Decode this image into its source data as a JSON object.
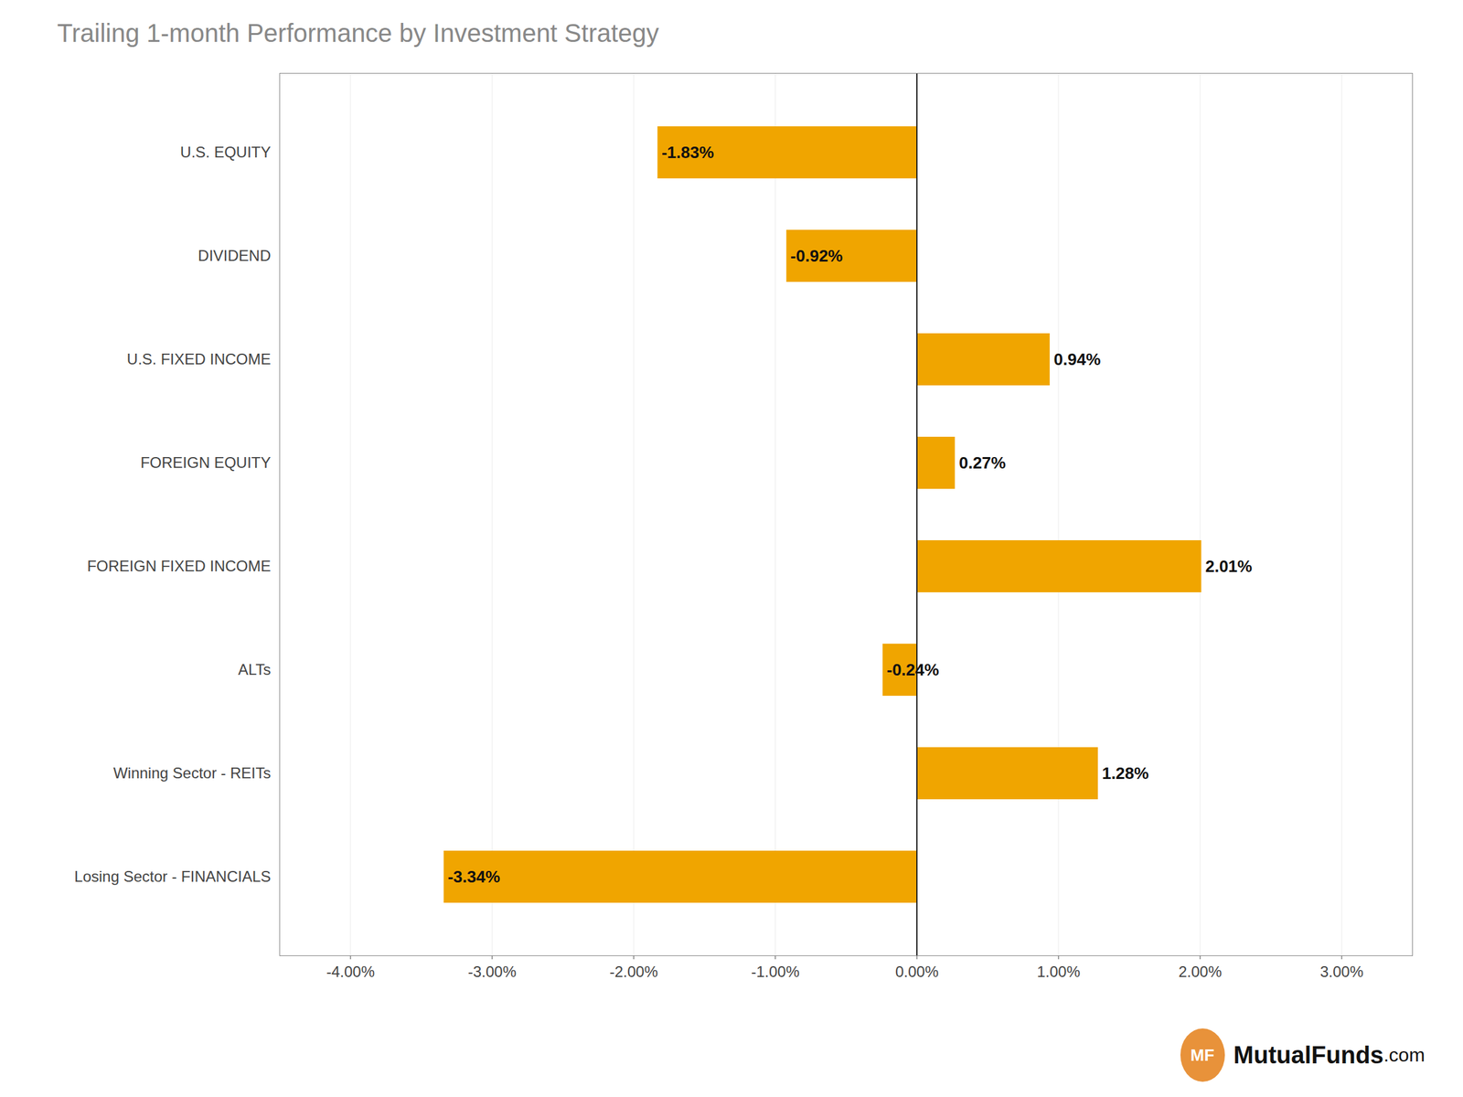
{
  "chart_data": {
    "type": "bar",
    "orientation": "horizontal",
    "title": "Trailing 1-month Performance by Investment Strategy",
    "categories": [
      "U.S. EQUITY",
      "DIVIDEND",
      "U.S. FIXED INCOME",
      "FOREIGN EQUITY",
      "FOREIGN FIXED INCOME",
      "ALTs",
      "Winning Sector - REITs",
      "Losing Sector - FINANCIALS"
    ],
    "values": [
      -1.83,
      -0.92,
      0.94,
      0.27,
      2.01,
      -0.24,
      1.28,
      -3.34
    ],
    "value_labels": [
      "-1.83%",
      "-0.92%",
      "0.94%",
      "0.27%",
      "2.01%",
      "-0.24%",
      "1.28%",
      "-3.34%"
    ],
    "data_labels": true,
    "color": "#F0A500",
    "xlim": [
      -4.5,
      3.5
    ],
    "xticks": [
      {
        "value": -4.0,
        "label": "-4.00%"
      },
      {
        "value": -3.0,
        "label": "-3.00%"
      },
      {
        "value": -2.0,
        "label": "-2.00%"
      },
      {
        "value": -1.0,
        "label": "-1.00%"
      },
      {
        "value": 0.0,
        "label": "0.00%"
      },
      {
        "value": 1.0,
        "label": "1.00%"
      },
      {
        "value": 2.0,
        "label": "2.00%"
      },
      {
        "value": 3.0,
        "label": "3.00%"
      }
    ],
    "grid": true,
    "annotations": [
      "MF",
      "MutualFunds",
      ".com"
    ]
  }
}
